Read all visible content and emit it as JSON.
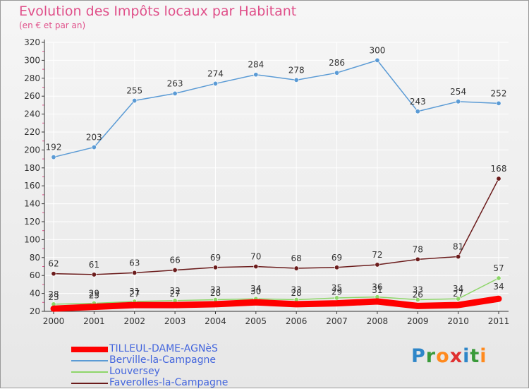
{
  "title": "Evolution des Impôts locaux par Habitant",
  "subtitle": "(en € et par an)",
  "logo": [
    "P",
    "r",
    "o",
    "x",
    "i",
    "t",
    "i"
  ],
  "colors": {
    "title": "#e0508a",
    "axis": "#333333",
    "grid": "#ffffff",
    "logo": [
      "#2e86c8",
      "#3a9a3a",
      "#ff8a1e",
      "#e03030",
      "#2e86c8",
      "#3a9a3a",
      "#ff8a1e"
    ]
  },
  "chart_data": {
    "type": "line",
    "x": [
      "2000",
      "2001",
      "2002",
      "2003",
      "2004",
      "2005",
      "2006",
      "2007",
      "2008",
      "2009",
      "2010",
      "2011"
    ],
    "ylim": [
      20,
      320
    ],
    "yticks": [
      20,
      40,
      60,
      80,
      100,
      120,
      140,
      160,
      180,
      200,
      220,
      240,
      260,
      280,
      300,
      320
    ],
    "grid": true,
    "legend_position": "bottom-left",
    "series": [
      {
        "name": "TILLEUL-DAME-AGNèS",
        "color": "#ff0000",
        "line_style": "thick",
        "values": [
          23,
          25,
          27,
          27,
          28,
          30,
          28,
          29,
          31,
          26,
          27,
          34
        ],
        "labels": [
          "23",
          "25",
          "27",
          "27",
          "28",
          "30",
          "28",
          "29",
          "31",
          "26",
          "27",
          "34"
        ]
      },
      {
        "name": "Berville-la-Campagne",
        "color": "#5b9bd5",
        "line_style": "thin",
        "values": [
          192,
          203,
          255,
          263,
          274,
          284,
          278,
          286,
          300,
          243,
          254,
          252
        ],
        "labels": [
          "192",
          "203",
          "255",
          "263",
          "274",
          "284",
          "278",
          "286",
          "300",
          "243",
          "254",
          "252"
        ]
      },
      {
        "name": "Louversey",
        "color": "#8ed66a",
        "line_style": "thin",
        "values": [
          28,
          29,
          31,
          32,
          33,
          34,
          33,
          35,
          36,
          33,
          34,
          57
        ],
        "labels": [
          "28",
          "29",
          "31",
          "32",
          "33",
          "34",
          "33",
          "35",
          "36",
          "33",
          "34",
          "57"
        ]
      },
      {
        "name": "Faverolles-la-Campagne",
        "color": "#6b1c1c",
        "line_style": "thin",
        "values": [
          62,
          61,
          63,
          66,
          69,
          70,
          68,
          69,
          72,
          78,
          81,
          168
        ],
        "labels": [
          "62",
          "61",
          "63",
          "66",
          "69",
          "70",
          "68",
          "69",
          "72",
          "78",
          "81",
          "168"
        ]
      }
    ]
  }
}
